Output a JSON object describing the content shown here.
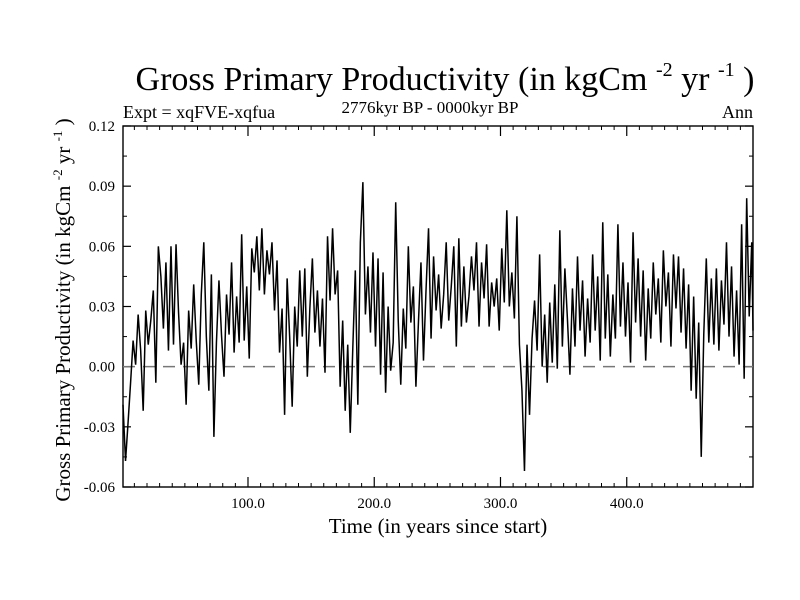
{
  "chart_data": {
    "type": "line",
    "title": {
      "base": "Gross Primary Productivity (in kgCm",
      "sup1": "-2",
      "mid": "yr",
      "sup2": "-1",
      "end": ")"
    },
    "subtitle_left": "Expt = xqFVE-xqfua",
    "subtitle_center": "2776kyr BP - 0000kyr BP",
    "subtitle_right": "Ann",
    "xlabel": "Time (in years since start)",
    "ylabel": {
      "base": "Gross Primary Productivity (in kgCm",
      "sup1": "-2",
      "mid": "yr",
      "sup2": "-1",
      "end": ")"
    },
    "xlim": [
      1,
      500
    ],
    "ylim": [
      -0.06,
      0.12
    ],
    "xticks": [
      {
        "value": 100,
        "label": "100.0"
      },
      {
        "value": 200,
        "label": "200.0"
      },
      {
        "value": 300,
        "label": "300.0"
      },
      {
        "value": 400,
        "label": "400.0"
      }
    ],
    "yticks": [
      {
        "value": -0.06,
        "label": "-0.06"
      },
      {
        "value": -0.03,
        "label": "-0.03"
      },
      {
        "value": 0.0,
        "label": "0.00"
      },
      {
        "value": 0.03,
        "label": "0.03"
      },
      {
        "value": 0.06,
        "label": "0.06"
      },
      {
        "value": 0.09,
        "label": "0.09"
      },
      {
        "value": 0.12,
        "label": "0.12"
      }
    ],
    "reference_line": {
      "y": 0.0,
      "style": "dashed",
      "color": "#777777"
    },
    "series": [
      {
        "name": "Gross Primary Productivity",
        "color": "#000000",
        "points": [
          [
            1,
            -0.019
          ],
          [
            3,
            -0.047
          ],
          [
            5,
            -0.028
          ],
          [
            7,
            -0.008
          ],
          [
            9,
            0.013
          ],
          [
            11,
            0.001
          ],
          [
            13,
            0.026
          ],
          [
            15,
            0.008
          ],
          [
            17,
            -0.022
          ],
          [
            19,
            0.028
          ],
          [
            21,
            0.011
          ],
          [
            23,
            0.023
          ],
          [
            25,
            0.038
          ],
          [
            27,
            -0.008
          ],
          [
            29,
            0.06
          ],
          [
            31,
            0.045
          ],
          [
            33,
            0.019
          ],
          [
            35,
            0.052
          ],
          [
            37,
            0.008
          ],
          [
            39,
            0.06
          ],
          [
            41,
            0.011
          ],
          [
            43,
            0.061
          ],
          [
            45,
            0.027
          ],
          [
            47,
            0.001
          ],
          [
            49,
            0.012
          ],
          [
            51,
            -0.019
          ],
          [
            53,
            0.028
          ],
          [
            55,
            0.009
          ],
          [
            57,
            0.041
          ],
          [
            59,
            0.013
          ],
          [
            61,
            -0.009
          ],
          [
            63,
            0.036
          ],
          [
            65,
            0.062
          ],
          [
            67,
            0.015
          ],
          [
            69,
            -0.012
          ],
          [
            71,
            0.046
          ],
          [
            73,
            -0.035
          ],
          [
            75,
            0.012
          ],
          [
            77,
            0.043
          ],
          [
            79,
            0.016
          ],
          [
            81,
            -0.005
          ],
          [
            83,
            0.036
          ],
          [
            85,
            0.016
          ],
          [
            87,
            0.052
          ],
          [
            89,
            0.007
          ],
          [
            91,
            0.035
          ],
          [
            93,
            0.012
          ],
          [
            95,
            0.066
          ],
          [
            97,
            0.013
          ],
          [
            99,
            0.04
          ],
          [
            101,
            0.004
          ],
          [
            103,
            0.059
          ],
          [
            105,
            0.047
          ],
          [
            107,
            0.065
          ],
          [
            109,
            0.038
          ],
          [
            111,
            0.069
          ],
          [
            113,
            0.036
          ],
          [
            115,
            0.058
          ],
          [
            117,
            0.046
          ],
          [
            119,
            0.062
          ],
          [
            121,
            0.028
          ],
          [
            123,
            0.053
          ],
          [
            125,
            0.007
          ],
          [
            127,
            0.029
          ],
          [
            129,
            -0.024
          ],
          [
            131,
            0.044
          ],
          [
            133,
            0.015
          ],
          [
            135,
            -0.02
          ],
          [
            137,
            0.03
          ],
          [
            139,
            0.01
          ],
          [
            141,
            0.048
          ],
          [
            143,
            0.015
          ],
          [
            145,
            0.049
          ],
          [
            147,
            -0.005
          ],
          [
            149,
            0.029
          ],
          [
            151,
            0.054
          ],
          [
            153,
            0.017
          ],
          [
            155,
            0.038
          ],
          [
            157,
            0.01
          ],
          [
            159,
            0.034
          ],
          [
            161,
            -0.003
          ],
          [
            163,
            0.065
          ],
          [
            165,
            0.033
          ],
          [
            167,
            0.069
          ],
          [
            169,
            0.036
          ],
          [
            171,
            0.048
          ],
          [
            173,
            -0.01
          ],
          [
            175,
            0.023
          ],
          [
            177,
            -0.022
          ],
          [
            179,
            0.011
          ],
          [
            181,
            -0.033
          ],
          [
            183,
            0.009
          ],
          [
            185,
            0.048
          ],
          [
            187,
            -0.019
          ],
          [
            189,
            0.062
          ],
          [
            191,
            0.092
          ],
          [
            193,
            0.026
          ],
          [
            195,
            0.05
          ],
          [
            197,
            0.017
          ],
          [
            199,
            0.057
          ],
          [
            201,
            0.01
          ],
          [
            203,
            0.054
          ],
          [
            205,
            -0.004
          ],
          [
            207,
            0.047
          ],
          [
            209,
            -0.013
          ],
          [
            211,
            0.03
          ],
          [
            213,
            -0.002
          ],
          [
            215,
            0.012
          ],
          [
            217,
            0.082
          ],
          [
            219,
            0.023
          ],
          [
            221,
            -0.009
          ],
          [
            223,
            0.029
          ],
          [
            225,
            0.009
          ],
          [
            227,
            0.06
          ],
          [
            229,
            0.022
          ],
          [
            231,
            0.04
          ],
          [
            233,
            -0.01
          ],
          [
            235,
            0.022
          ],
          [
            237,
            0.052
          ],
          [
            239,
            0.003
          ],
          [
            241,
            0.038
          ],
          [
            243,
            0.069
          ],
          [
            245,
            0.014
          ],
          [
            247,
            0.055
          ],
          [
            249,
            0.028
          ],
          [
            251,
            0.046
          ],
          [
            253,
            0.019
          ],
          [
            255,
            0.036
          ],
          [
            257,
            0.062
          ],
          [
            259,
            0.023
          ],
          [
            261,
            0.04
          ],
          [
            263,
            0.06
          ],
          [
            265,
            0.01
          ],
          [
            267,
            0.064
          ],
          [
            269,
            0.02
          ],
          [
            271,
            0.05
          ],
          [
            273,
            0.022
          ],
          [
            275,
            0.035
          ],
          [
            277,
            0.055
          ],
          [
            279,
            0.038
          ],
          [
            281,
            0.062
          ],
          [
            283,
            0.02
          ],
          [
            285,
            0.052
          ],
          [
            287,
            0.034
          ],
          [
            289,
            0.061
          ],
          [
            291,
            0.02
          ],
          [
            293,
            0.042
          ],
          [
            295,
            0.03
          ],
          [
            297,
            0.044
          ],
          [
            299,
            0.018
          ],
          [
            301,
            0.059
          ],
          [
            303,
            0.032
          ],
          [
            305,
            0.078
          ],
          [
            307,
            0.03
          ],
          [
            309,
            0.047
          ],
          [
            311,
            0.024
          ],
          [
            313,
            0.075
          ],
          [
            315,
            0.011
          ],
          [
            317,
            -0.012
          ],
          [
            319,
            -0.052
          ],
          [
            321,
            0.011
          ],
          [
            323,
            -0.024
          ],
          [
            325,
            0.014
          ],
          [
            327,
            0.033
          ],
          [
            329,
            0.008
          ],
          [
            331,
            0.056
          ],
          [
            333,
            0.0
          ],
          [
            335,
            0.026
          ],
          [
            337,
            -0.008
          ],
          [
            339,
            0.032
          ],
          [
            341,
            0.002
          ],
          [
            343,
            0.041
          ],
          [
            345,
            -0.001
          ],
          [
            347,
            0.068
          ],
          [
            349,
            0.01
          ],
          [
            351,
            0.049
          ],
          [
            353,
            0.024
          ],
          [
            355,
            -0.004
          ],
          [
            357,
            0.039
          ],
          [
            359,
            0.01
          ],
          [
            361,
            0.055
          ],
          [
            363,
            0.018
          ],
          [
            365,
            0.043
          ],
          [
            367,
            0.005
          ],
          [
            369,
            0.034
          ],
          [
            371,
            0.012
          ],
          [
            373,
            0.056
          ],
          [
            375,
            0.018
          ],
          [
            377,
            0.045
          ],
          [
            379,
            0.003
          ],
          [
            381,
            0.072
          ],
          [
            383,
            0.014
          ],
          [
            385,
            0.046
          ],
          [
            387,
            0.005
          ],
          [
            389,
            0.036
          ],
          [
            391,
            0.014
          ],
          [
            393,
            0.071
          ],
          [
            395,
            0.02
          ],
          [
            397,
            0.052
          ],
          [
            399,
            0.015
          ],
          [
            401,
            0.042
          ],
          [
            403,
            0.002
          ],
          [
            405,
            0.067
          ],
          [
            407,
            0.022
          ],
          [
            409,
            0.054
          ],
          [
            411,
            0.015
          ],
          [
            413,
            0.048
          ],
          [
            415,
            0.003
          ],
          [
            417,
            0.039
          ],
          [
            419,
            0.014
          ],
          [
            421,
            0.052
          ],
          [
            423,
            0.026
          ],
          [
            425,
            0.044
          ],
          [
            427,
            0.012
          ],
          [
            429,
            0.058
          ],
          [
            431,
            0.03
          ],
          [
            433,
            0.047
          ],
          [
            435,
            0.01
          ],
          [
            437,
            0.056
          ],
          [
            439,
            0.029
          ],
          [
            441,
            0.055
          ],
          [
            443,
            0.017
          ],
          [
            445,
            0.049
          ],
          [
            447,
            0.009
          ],
          [
            449,
            0.041
          ],
          [
            451,
            -0.012
          ],
          [
            453,
            0.035
          ],
          [
            455,
            -0.016
          ],
          [
            457,
            0.022
          ],
          [
            459,
            -0.045
          ],
          [
            461,
            0.016
          ],
          [
            463,
            0.054
          ],
          [
            465,
            0.012
          ],
          [
            467,
            0.044
          ],
          [
            469,
            0.011
          ],
          [
            471,
            0.049
          ],
          [
            473,
            0.008
          ],
          [
            475,
            0.043
          ],
          [
            477,
            0.021
          ],
          [
            479,
            0.062
          ],
          [
            481,
            0.015
          ],
          [
            483,
            0.05
          ],
          [
            485,
            0.005
          ],
          [
            487,
            0.038
          ],
          [
            489,
            0.001
          ],
          [
            491,
            0.071
          ],
          [
            493,
            -0.006
          ],
          [
            495,
            0.084
          ],
          [
            497,
            0.025
          ],
          [
            499,
            0.062
          ],
          [
            500,
            0.018
          ]
        ]
      }
    ]
  }
}
